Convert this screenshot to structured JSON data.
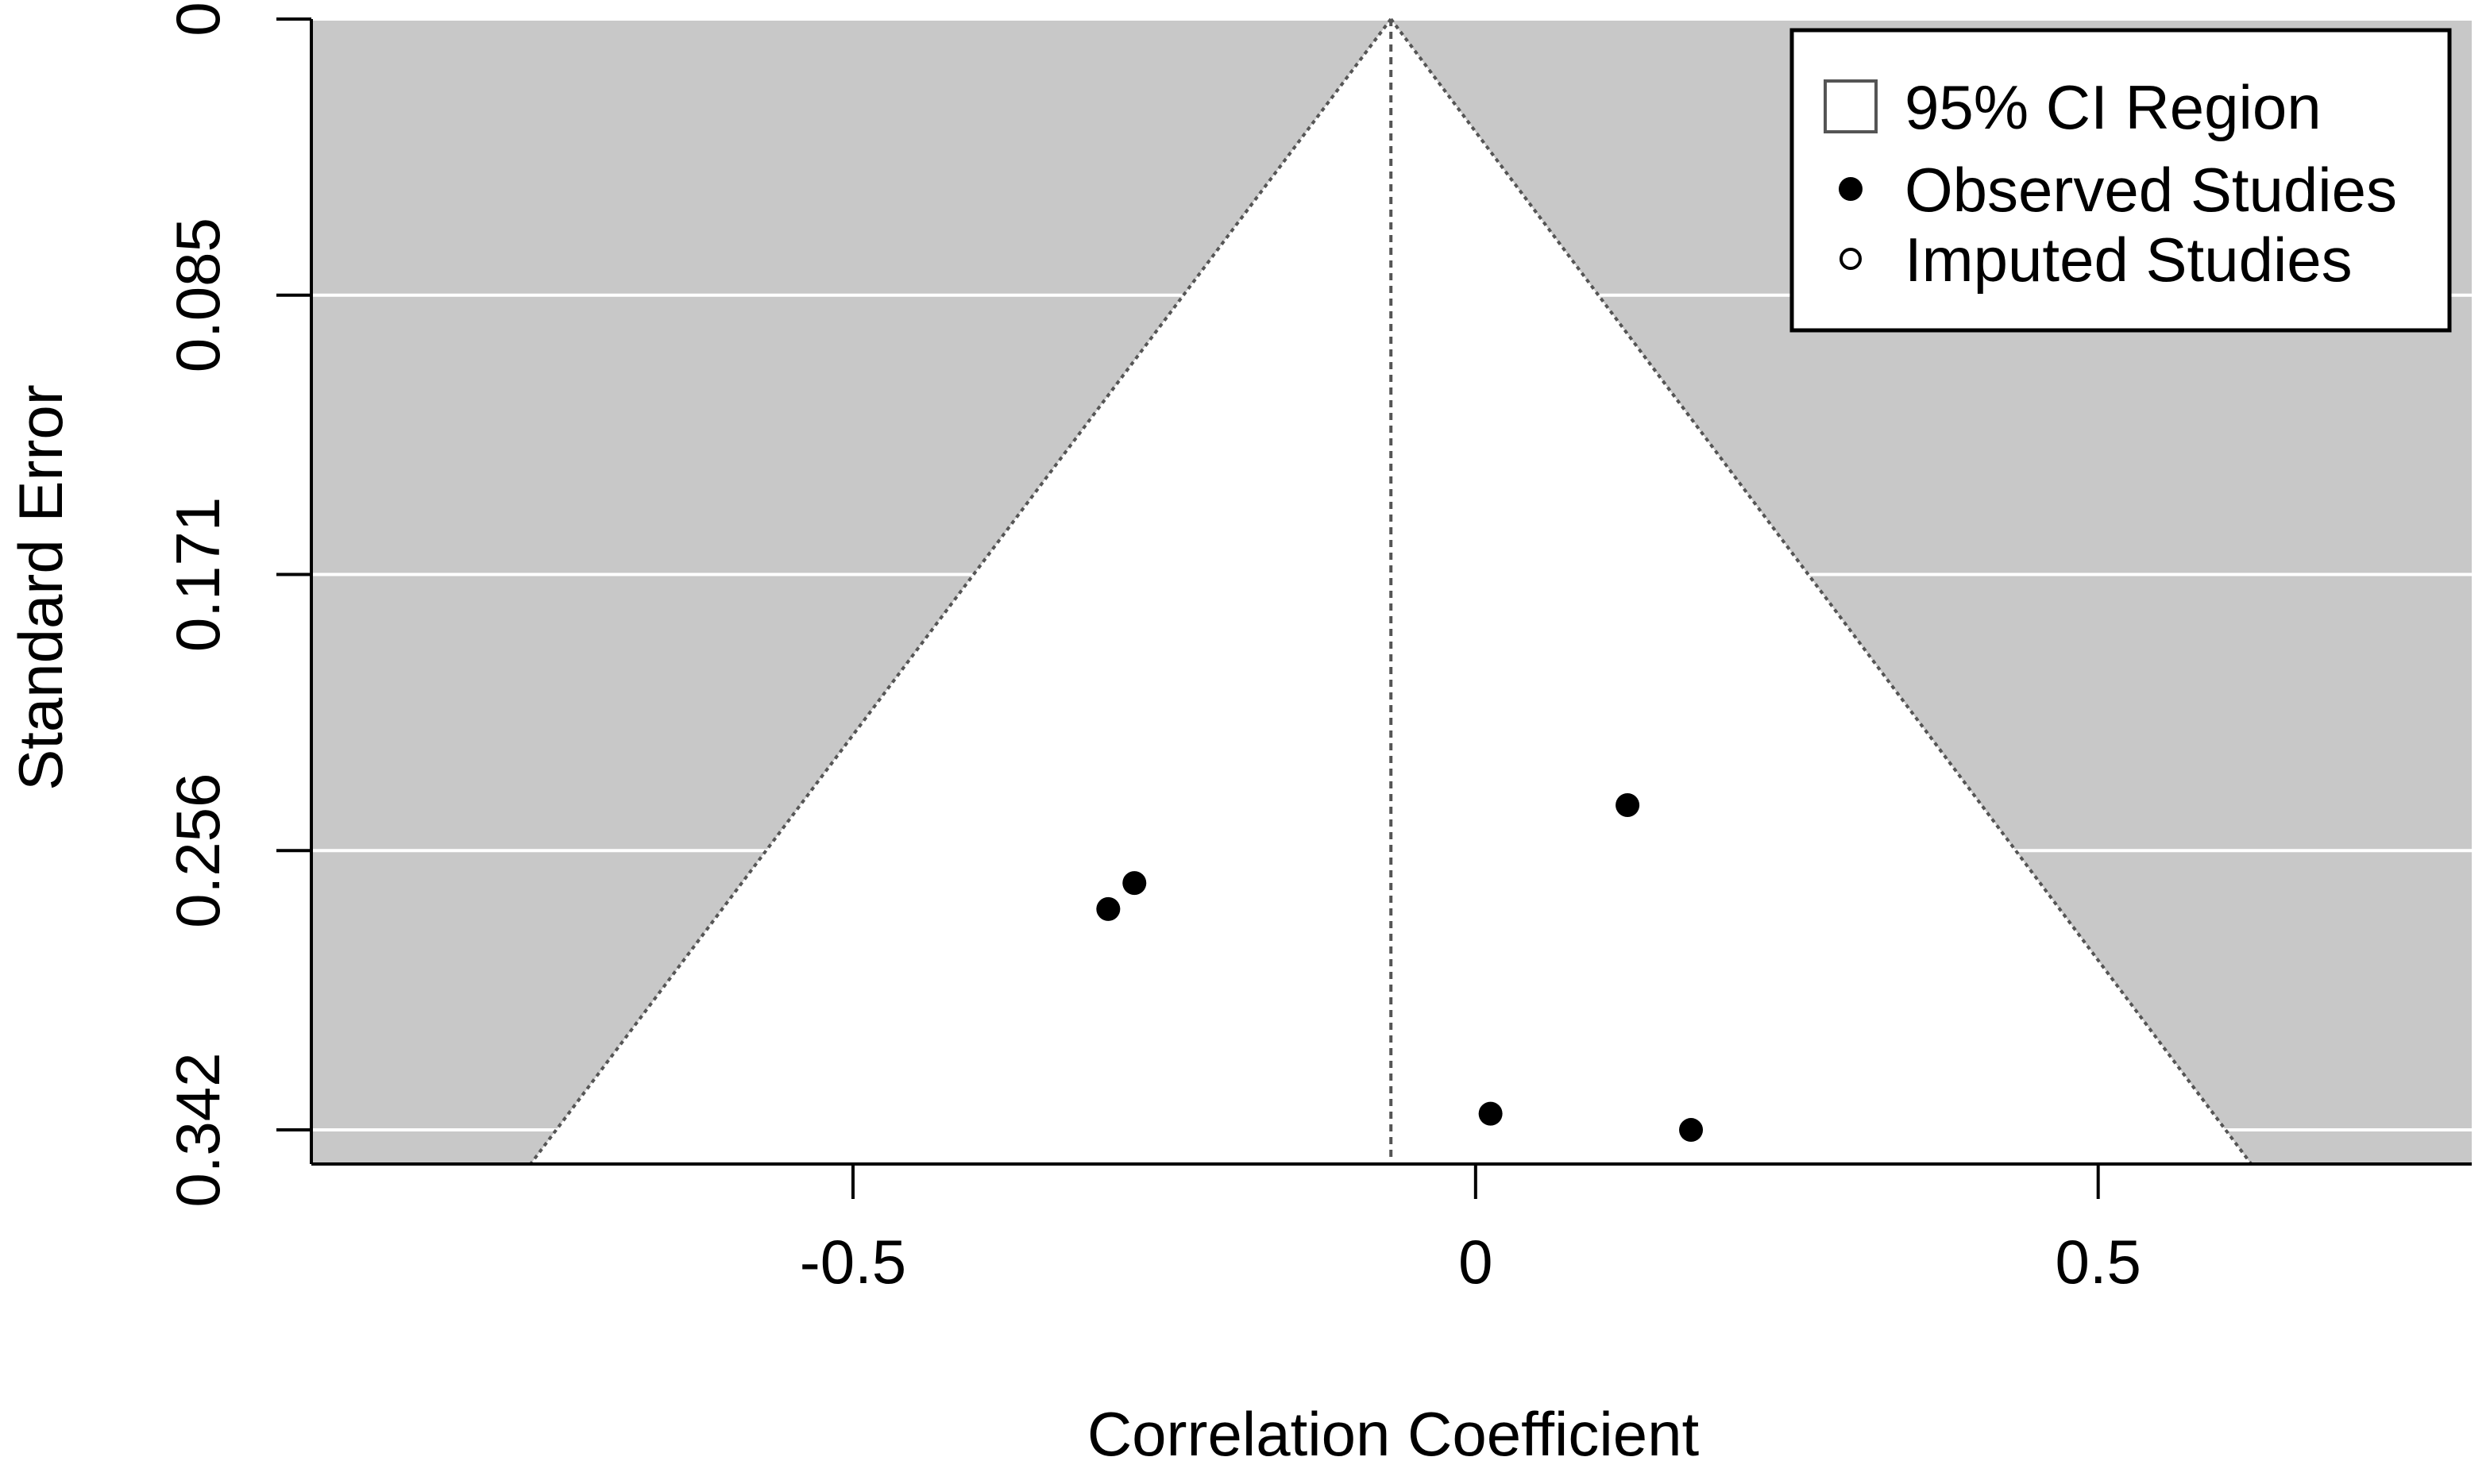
{
  "chart_data": {
    "type": "scatter",
    "subtype": "funnel",
    "title": "",
    "xlabel": "Correlation Coefficient",
    "ylabel": "Standard Error",
    "xlim": [
      -0.935,
      0.8
    ],
    "ylim": [
      0.3525,
      0
    ],
    "y_reversed": true,
    "x_ticks": [
      -0.5,
      0,
      0.5
    ],
    "x_tick_labels": [
      "-0.5",
      "0",
      "0.5"
    ],
    "y_ticks": [
      0,
      0.085,
      0.171,
      0.256,
      0.342
    ],
    "y_tick_labels": [
      "0",
      "0.085",
      "0.171",
      "0.256",
      "0.342"
    ],
    "grid": true,
    "center_estimate": -0.068,
    "ci_multiplier": 1.96,
    "colors": {
      "background_region": "#c8c8c8",
      "ci_region": "#ffffff",
      "gridline": "#ffffff",
      "point": "#000000"
    },
    "legend": {
      "position": "top-right",
      "entries": [
        {
          "label": "95% CI Region",
          "symbol": "square-open"
        },
        {
          "label": "Observed Studies",
          "symbol": "circle-filled"
        },
        {
          "label": "Imputed Studies",
          "symbol": "circle-open"
        }
      ]
    },
    "series": [
      {
        "name": "Observed Studies",
        "points": [
          {
            "x": -0.295,
            "y": 0.274
          },
          {
            "x": -0.274,
            "y": 0.266
          },
          {
            "x": 0.122,
            "y": 0.242
          },
          {
            "x": 0.012,
            "y": 0.337
          },
          {
            "x": 0.173,
            "y": 0.342
          }
        ]
      },
      {
        "name": "Imputed Studies",
        "points": []
      }
    ]
  }
}
